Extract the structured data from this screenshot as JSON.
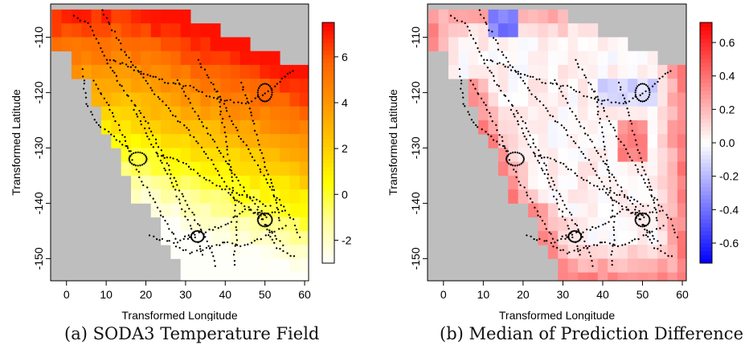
{
  "colors": {
    "background_gray": "#bebebe",
    "track_dots": "#000000",
    "temperature_scale": [
      "#ffffff",
      "#ffffa0",
      "#ffff00",
      "#ffc800",
      "#ff9600",
      "#ff6400",
      "#ff0000"
    ],
    "difference_scale": [
      "#0000ff",
      "#ffffff",
      "#ff0000"
    ]
  },
  "captions": {
    "a": "(a) SODA3 Temperature Field",
    "b": "(b) Median of Prediction Difference"
  },
  "chart_data": [
    {
      "type": "heatmap",
      "panel": "a",
      "xlabel": "Transformed Longitude",
      "ylabel": "Transformed Latitude",
      "xlim": [
        -4,
        61
      ],
      "ylim": [
        -154,
        -104
      ],
      "x_ticks": [
        0,
        10,
        20,
        30,
        40,
        50,
        60
      ],
      "y_ticks": [
        -110,
        -120,
        -130,
        -140,
        -150
      ],
      "colorbar": {
        "range": [
          -3,
          7.5
        ],
        "ticks": [
          -2,
          0,
          2,
          4,
          6
        ]
      },
      "grid_cell_size": 2.5,
      "value_field": "SODA3 temperature; warmest (about 6-7) along the northern and eastern edges, decreasing to about -2 in the south-west"
    },
    {
      "type": "heatmap",
      "panel": "b",
      "xlabel": "Transformed Longitude",
      "ylabel": "Transformed Latitude",
      "xlim": [
        -4,
        61
      ],
      "ylim": [
        -154,
        -104
      ],
      "x_ticks": [
        0,
        10,
        20,
        30,
        40,
        50,
        60
      ],
      "y_ticks": [
        -110,
        -120,
        -130,
        -140,
        -150
      ],
      "colorbar": {
        "range": [
          -0.72,
          0.72
        ],
        "ticks": [
          -0.6,
          -0.4,
          -0.2,
          0.0,
          0.2,
          0.4,
          0.6
        ]
      },
      "grid_cell_size": 2.5,
      "value_field": "median prediction difference; near 0 inside the track area, positive (0.3-0.6) along the outer edges, a few negative cells near the top (about -0.4)"
    }
  ]
}
